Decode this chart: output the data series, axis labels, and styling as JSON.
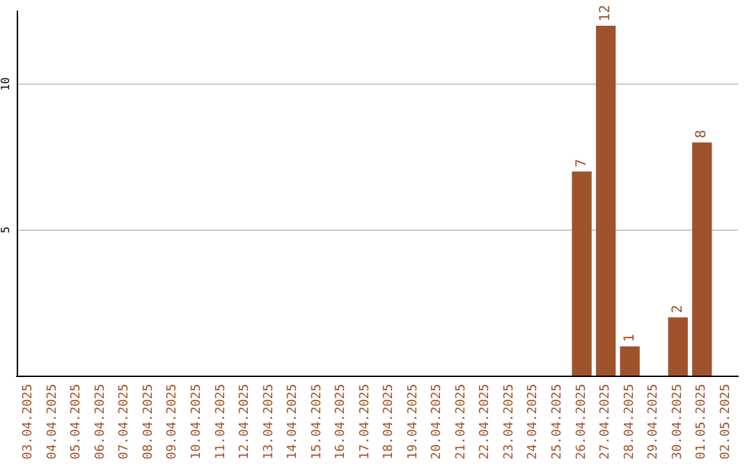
{
  "chart_data": {
    "type": "bar",
    "categories": [
      "03.04.2025",
      "04.04.2025",
      "05.04.2025",
      "06.04.2025",
      "07.04.2025",
      "08.04.2025",
      "09.04.2025",
      "10.04.2025",
      "11.04.2025",
      "12.04.2025",
      "13.04.2025",
      "14.04.2025",
      "15.04.2025",
      "16.04.2025",
      "17.04.2025",
      "18.04.2025",
      "19.04.2025",
      "20.04.2025",
      "21.04.2025",
      "22.04.2025",
      "23.04.2025",
      "24.04.2025",
      "25.04.2025",
      "26.04.2025",
      "27.04.2025",
      "28.04.2025",
      "29.04.2025",
      "30.04.2025",
      "01.05.2025",
      "02.05.2025"
    ],
    "values": [
      0,
      0,
      0,
      0,
      0,
      0,
      0,
      0,
      0,
      0,
      0,
      0,
      0,
      0,
      0,
      0,
      0,
      0,
      0,
      0,
      0,
      0,
      0,
      7,
      12,
      1,
      0,
      2,
      8,
      0
    ],
    "value_labels": [
      null,
      null,
      null,
      null,
      null,
      null,
      null,
      null,
      null,
      null,
      null,
      null,
      null,
      null,
      null,
      null,
      null,
      null,
      null,
      null,
      null,
      null,
      null,
      "7",
      "12",
      "1",
      null,
      "2",
      "8",
      null
    ],
    "color": "#a0522d",
    "ylim": [
      0,
      12.5
    ],
    "yticks": [
      5,
      10
    ],
    "grid": "y"
  }
}
